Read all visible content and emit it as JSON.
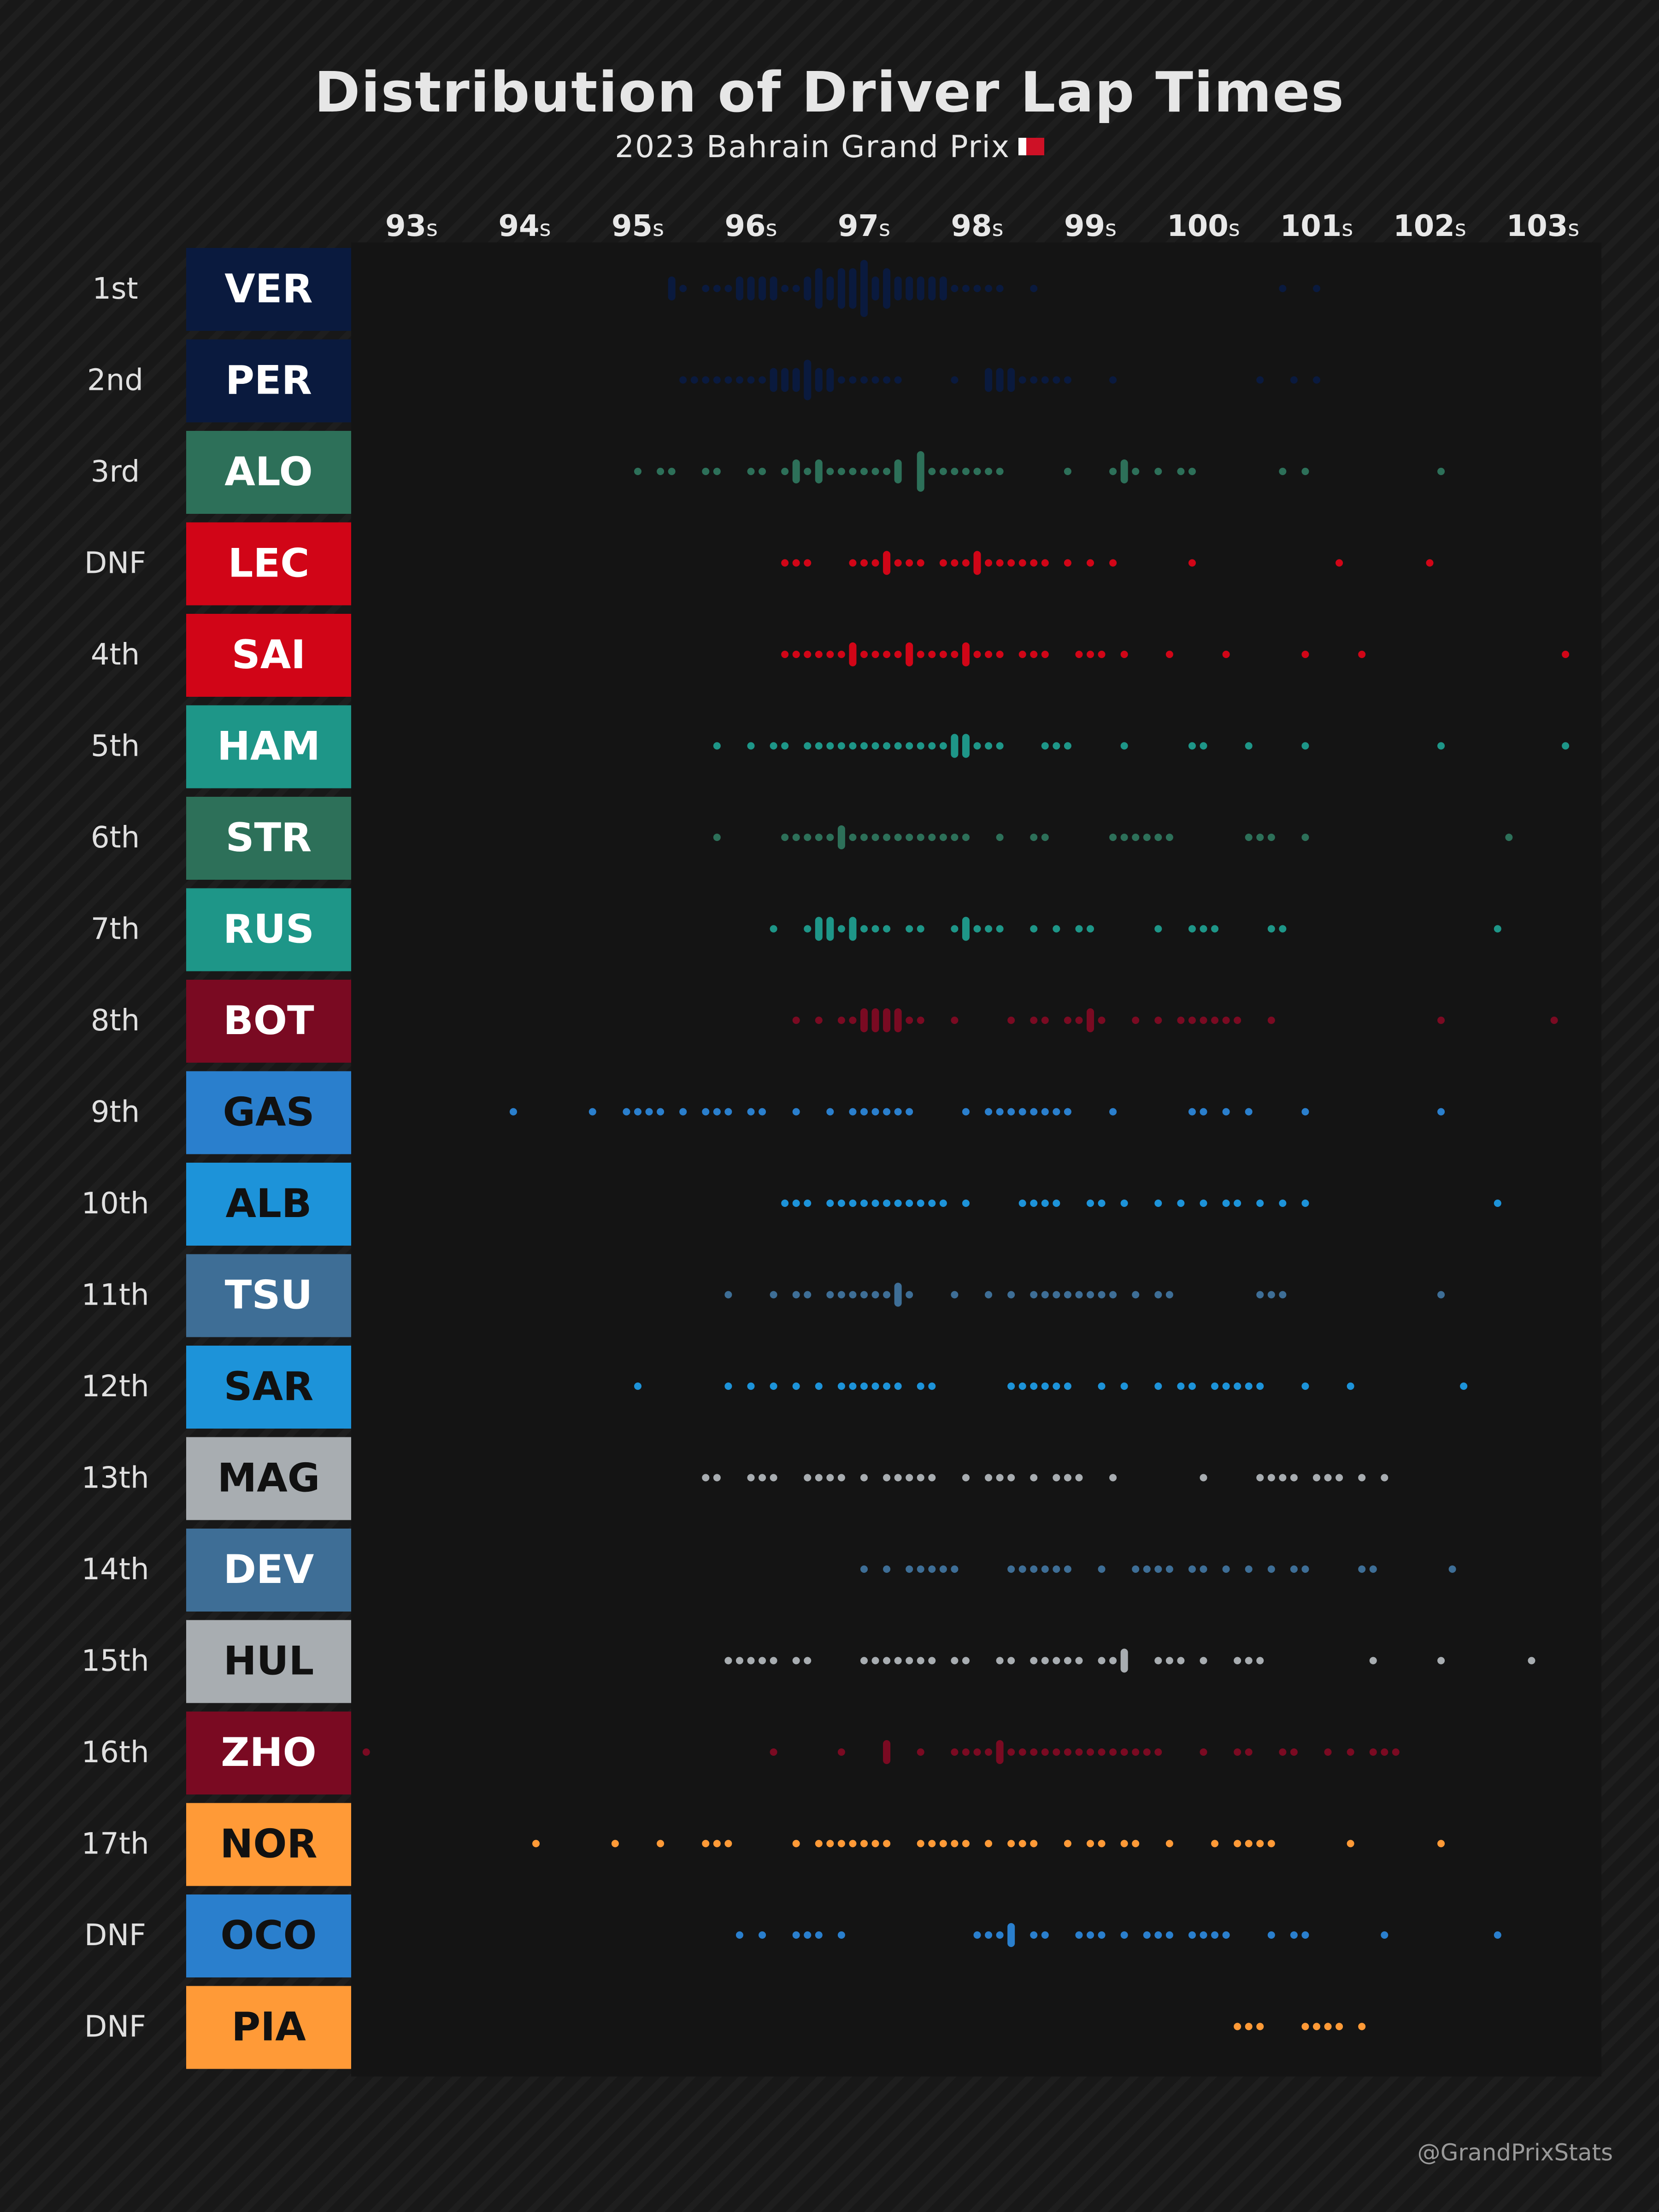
{
  "title": "Distribution of Driver Lap Times",
  "subtitle": "2023 Bahrain Grand Prix",
  "credit": "@GrandPrixStats",
  "chart_data": {
    "type": "swarm",
    "x_unit": "s",
    "xlim": [
      92.6,
      103.5
    ],
    "x_ticks": [
      93,
      94,
      95,
      96,
      97,
      98,
      99,
      100,
      101,
      102,
      103
    ],
    "series": [
      {
        "position": "1st",
        "driver": "VER",
        "team_color": "#0a1a3e",
        "text_color": "#ffffff",
        "laps": [
          95.25,
          95.3,
          95.4,
          95.55,
          95.7,
          95.8,
          95.85,
          95.9,
          95.95,
          96.0,
          96.05,
          96.1,
          96.15,
          96.2,
          96.25,
          96.4,
          96.45,
          96.5,
          96.55,
          96.55,
          96.6,
          96.65,
          96.7,
          96.75,
          96.75,
          96.8,
          96.85,
          96.9,
          96.9,
          96.95,
          96.95,
          97.0,
          97.0,
          97.05,
          97.1,
          97.15,
          97.2,
          97.2,
          97.25,
          97.3,
          97.35,
          97.4,
          97.45,
          97.5,
          97.55,
          97.6,
          97.65,
          97.7,
          97.8,
          97.9,
          98.0,
          98.1,
          98.2,
          98.45,
          100.65,
          101.0
        ]
      },
      {
        "position": "2nd",
        "driver": "PER",
        "team_color": "#0a1a3e",
        "text_color": "#ffffff",
        "laps": [
          95.4,
          95.5,
          95.6,
          95.7,
          95.8,
          95.9,
          96.0,
          96.1,
          96.15,
          96.2,
          96.25,
          96.3,
          96.35,
          96.4,
          96.45,
          96.45,
          96.5,
          96.55,
          96.6,
          96.65,
          96.7,
          96.8,
          96.9,
          97.0,
          97.1,
          97.2,
          97.3,
          97.8,
          98.05,
          98.1,
          98.15,
          98.2,
          98.25,
          98.3,
          98.4,
          98.5,
          98.6,
          98.7,
          98.8,
          99.2,
          100.5,
          100.75,
          100.95
        ]
      },
      {
        "position": "3rd",
        "driver": "ALO",
        "team_color": "#2d7059",
        "text_color": "#ffffff",
        "laps": [
          94.95,
          95.2,
          95.25,
          95.6,
          95.65,
          96.0,
          96.05,
          96.3,
          96.35,
          96.4,
          96.45,
          96.55,
          96.6,
          96.7,
          96.8,
          96.9,
          97.0,
          97.1,
          97.2,
          97.25,
          97.3,
          97.45,
          97.45,
          97.5,
          97.6,
          97.7,
          97.8,
          97.9,
          98.0,
          98.1,
          98.2,
          98.8,
          99.15,
          99.25,
          99.3,
          99.4,
          99.55,
          99.8,
          99.85,
          100.65,
          100.85,
          102.1
        ]
      },
      {
        "position": "DNF",
        "driver": "LEC",
        "team_color": "#d10517",
        "text_color": "#ffffff",
        "laps": [
          96.3,
          96.4,
          96.5,
          96.85,
          96.95,
          97.05,
          97.15,
          97.2,
          97.3,
          97.4,
          97.5,
          97.7,
          97.8,
          97.9,
          98.0,
          98.0,
          98.1,
          98.2,
          98.3,
          98.4,
          98.5,
          98.6,
          98.8,
          99.0,
          99.2,
          99.9,
          101.15,
          101.95
        ]
      },
      {
        "position": "4th",
        "driver": "SAI",
        "team_color": "#d10517",
        "text_color": "#ffffff",
        "laps": [
          96.3,
          96.4,
          96.5,
          96.6,
          96.7,
          96.8,
          96.9,
          96.9,
          97.0,
          97.1,
          97.2,
          97.3,
          97.35,
          97.4,
          97.5,
          97.6,
          97.7,
          97.8,
          97.85,
          97.9,
          98.0,
          98.1,
          98.2,
          98.35,
          98.45,
          98.55,
          98.9,
          99.0,
          99.1,
          99.3,
          99.7,
          100.2,
          100.9,
          101.35,
          103.2
        ]
      },
      {
        "position": "5th",
        "driver": "HAM",
        "team_color": "#1e9688",
        "text_color": "#ffffff",
        "laps": [
          95.7,
          96.0,
          96.2,
          96.25,
          96.5,
          96.6,
          96.7,
          96.8,
          96.9,
          97.0,
          97.1,
          97.2,
          97.3,
          97.4,
          97.5,
          97.6,
          97.7,
          97.75,
          97.8,
          97.85,
          97.9,
          98.0,
          98.05,
          98.2,
          98.6,
          98.7,
          98.8,
          99.3,
          99.85,
          99.95,
          100.4,
          100.85,
          102.1,
          103.2
        ]
      },
      {
        "position": "6th",
        "driver": "STR",
        "team_color": "#2d7059",
        "text_color": "#ffffff",
        "laps": [
          95.7,
          96.3,
          96.4,
          96.5,
          96.55,
          96.65,
          96.75,
          96.8,
          96.9,
          97.0,
          97.1,
          97.2,
          97.3,
          97.4,
          97.5,
          97.6,
          97.7,
          97.8,
          97.9,
          98.15,
          98.5,
          98.6,
          99.15,
          99.25,
          99.35,
          99.45,
          99.55,
          99.65,
          100.4,
          100.5,
          100.6,
          100.9,
          102.7
        ]
      },
      {
        "position": "7th",
        "driver": "RUS",
        "team_color": "#1e9688",
        "text_color": "#ffffff",
        "laps": [
          96.2,
          96.45,
          96.55,
          96.6,
          96.65,
          96.7,
          96.8,
          96.85,
          96.9,
          97.0,
          97.1,
          97.2,
          97.4,
          97.5,
          97.8,
          97.85,
          97.9,
          97.95,
          98.05,
          98.15,
          98.5,
          98.7,
          98.85,
          98.95,
          99.6,
          99.9,
          100.0,
          100.1,
          100.6,
          100.7,
          102.55
        ]
      },
      {
        "position": "8th",
        "driver": "BOT",
        "team_color": "#7a0a22",
        "text_color": "#ffffff",
        "laps": [
          96.4,
          96.6,
          96.8,
          96.9,
          96.95,
          97.0,
          97.05,
          97.1,
          97.15,
          97.2,
          97.25,
          97.3,
          97.4,
          97.5,
          97.8,
          98.25,
          98.45,
          98.6,
          98.75,
          98.85,
          98.95,
          99.0,
          99.1,
          99.4,
          99.55,
          99.8,
          99.9,
          100.0,
          100.1,
          100.2,
          100.3,
          100.6,
          102.1,
          103.1
        ]
      },
      {
        "position": "9th",
        "driver": "GAS",
        "team_color": "#2a7fcd",
        "text_color": "#111111",
        "laps": [
          93.9,
          94.6,
          94.9,
          95.0,
          95.1,
          95.2,
          95.4,
          95.6,
          95.7,
          95.8,
          96.0,
          96.1,
          96.4,
          96.7,
          96.85,
          96.95,
          97.05,
          97.15,
          97.25,
          97.35,
          97.9,
          98.1,
          98.2,
          98.3,
          98.4,
          98.5,
          98.6,
          98.7,
          98.8,
          99.2,
          99.85,
          100.0,
          100.2,
          100.4,
          100.85,
          102.1
        ]
      },
      {
        "position": "10th",
        "driver": "ALB",
        "team_color": "#1d93d9",
        "text_color": "#111111",
        "laps": [
          96.3,
          96.4,
          96.5,
          96.7,
          96.8,
          96.9,
          97.0,
          97.1,
          97.2,
          97.3,
          97.4,
          97.45,
          97.6,
          97.7,
          97.9,
          98.4,
          98.5,
          98.6,
          98.7,
          99.0,
          99.1,
          99.3,
          99.6,
          99.8,
          100.0,
          100.2,
          100.3,
          100.5,
          100.7,
          100.85,
          102.55
        ]
      },
      {
        "position": "11th",
        "driver": "TSU",
        "team_color": "#3e6e96",
        "text_color": "#ffffff",
        "laps": [
          95.8,
          96.2,
          96.4,
          96.5,
          96.7,
          96.8,
          96.9,
          97.0,
          97.1,
          97.2,
          97.25,
          97.3,
          97.4,
          97.8,
          98.1,
          98.3,
          98.45,
          98.55,
          98.65,
          98.75,
          98.85,
          98.95,
          99.1,
          99.2,
          99.4,
          99.6,
          99.7,
          100.45,
          100.55,
          100.65,
          102.1
        ]
      },
      {
        "position": "12th",
        "driver": "SAR",
        "team_color": "#1d93d9",
        "text_color": "#111111",
        "laps": [
          95.0,
          95.8,
          96.0,
          96.2,
          96.35,
          96.6,
          96.75,
          96.85,
          96.95,
          97.05,
          97.15,
          97.25,
          97.5,
          97.6,
          98.3,
          98.4,
          98.5,
          98.6,
          98.7,
          98.8,
          99.1,
          99.3,
          99.6,
          99.8,
          99.9,
          100.1,
          100.2,
          100.3,
          100.4,
          100.5,
          100.85,
          101.25,
          102.3
        ]
      },
      {
        "position": "13th",
        "driver": "MAG",
        "team_color": "#a8adb1",
        "text_color": "#111111",
        "laps": [
          95.6,
          95.7,
          96.0,
          96.1,
          96.2,
          96.45,
          96.55,
          96.65,
          96.75,
          97.0,
          97.2,
          97.3,
          97.4,
          97.5,
          97.6,
          97.9,
          98.1,
          98.2,
          98.3,
          98.5,
          98.7,
          98.8,
          98.9,
          99.15,
          100.0,
          100.45,
          100.55,
          100.65,
          100.75,
          100.95,
          101.05,
          101.2,
          101.4,
          101.6
        ]
      },
      {
        "position": "14th",
        "driver": "DEV",
        "team_color": "#3e6e96",
        "text_color": "#ffffff",
        "laps": [
          97.0,
          97.2,
          97.4,
          97.5,
          97.6,
          97.7,
          97.8,
          98.25,
          98.35,
          98.45,
          98.55,
          98.65,
          98.75,
          99.05,
          99.35,
          99.5,
          99.6,
          99.7,
          99.85,
          99.95,
          100.2,
          100.4,
          100.6,
          100.8,
          100.9,
          101.35,
          101.45,
          102.2
        ]
      },
      {
        "position": "15th",
        "driver": "HUL",
        "team_color": "#a8adb1",
        "text_color": "#111111",
        "laps": [
          95.8,
          95.9,
          96.0,
          96.1,
          96.2,
          96.4,
          96.5,
          96.95,
          97.05,
          97.2,
          97.3,
          97.4,
          97.5,
          97.6,
          97.8,
          97.9,
          98.2,
          98.3,
          98.45,
          98.55,
          98.65,
          98.75,
          98.9,
          99.05,
          99.15,
          99.25,
          99.3,
          99.6,
          99.7,
          99.8,
          100.0,
          100.3,
          100.4,
          100.5,
          101.45,
          102.1,
          102.85
        ]
      },
      {
        "position": "16th",
        "driver": "ZHO",
        "team_color": "#7a0a22",
        "text_color": "#ffffff",
        "laps": [
          92.6,
          96.2,
          96.75,
          97.15,
          97.2,
          97.5,
          97.75,
          97.85,
          97.95,
          98.05,
          98.15,
          98.2,
          98.3,
          98.4,
          98.5,
          98.6,
          98.7,
          98.75,
          98.85,
          98.95,
          99.05,
          99.15,
          99.25,
          99.35,
          99.45,
          99.55,
          100.0,
          100.3,
          100.4,
          100.65,
          100.75,
          101.05,
          101.3,
          101.5,
          101.6,
          101.7
        ]
      },
      {
        "position": "17th",
        "driver": "NOR",
        "team_color": "#ff9a37",
        "text_color": "#111111",
        "laps": [
          94.1,
          94.8,
          95.15,
          95.55,
          95.65,
          95.75,
          96.4,
          96.6,
          96.7,
          96.8,
          96.9,
          97.0,
          97.1,
          97.2,
          97.45,
          97.55,
          97.65,
          97.75,
          97.85,
          98.05,
          98.25,
          98.4,
          98.5,
          98.75,
          98.95,
          99.05,
          99.3,
          99.4,
          99.7,
          100.1,
          100.3,
          100.4,
          100.5,
          100.6,
          101.25,
          102.1
        ]
      },
      {
        "position": "DNF",
        "driver": "OCO",
        "team_color": "#2a7fcd",
        "text_color": "#111111",
        "laps": [
          95.85,
          96.1,
          96.35,
          96.45,
          96.55,
          96.8,
          98.0,
          98.1,
          98.2,
          98.25,
          98.3,
          98.45,
          98.55,
          98.85,
          99.0,
          99.05,
          99.25,
          99.45,
          99.55,
          99.65,
          99.85,
          99.95,
          100.05,
          100.15,
          100.55,
          100.75,
          100.85,
          101.6,
          102.55
        ]
      },
      {
        "position": "DNF",
        "driver": "PIA",
        "team_color": "#ff9a37",
        "text_color": "#111111",
        "laps": [
          100.3,
          100.4,
          100.5,
          100.85,
          100.95,
          101.05,
          101.15,
          101.4
        ]
      }
    ]
  }
}
